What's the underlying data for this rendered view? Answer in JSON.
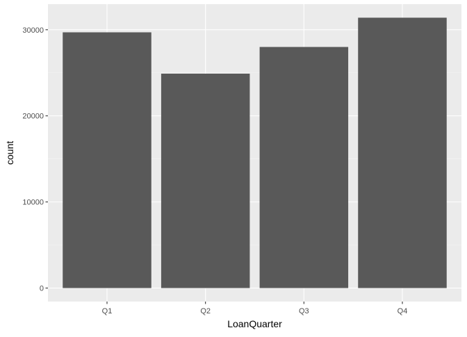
{
  "chart_data": {
    "type": "bar",
    "title": "",
    "xlabel": "LoanQuarter",
    "ylabel": "count",
    "categories": [
      "Q1",
      "Q2",
      "Q3",
      "Q4"
    ],
    "values": [
      29700,
      24900,
      28000,
      31400
    ],
    "ylim": [
      -1570,
      32970
    ],
    "yticks": [
      0,
      10000,
      20000,
      30000
    ],
    "ytick_labels": [
      "0",
      "10000",
      "20000",
      "30000"
    ],
    "grid": true,
    "legend": "none",
    "colors": {
      "panel_background": "#ebebeb",
      "grid_major": "#ffffff",
      "grid_minor": "#f5f5f5",
      "bar_fill": "#595959",
      "tick_mark": "#333333"
    }
  }
}
